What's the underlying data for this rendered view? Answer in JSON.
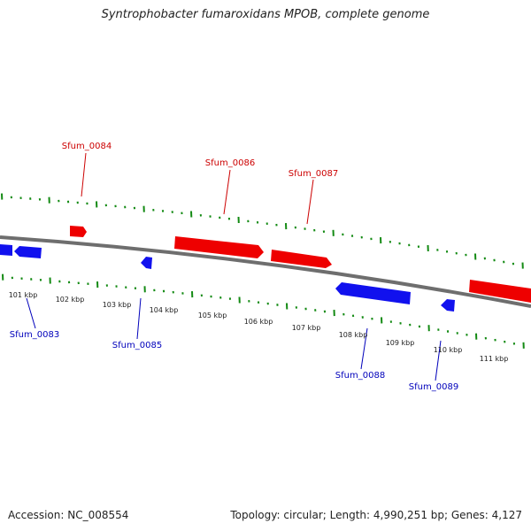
{
  "title": "Syntrophobacter fumaroxidans MPOB, complete genome",
  "accession": "Accession: NC_008554",
  "summary": "Topology: circular; Length: 4,990,251 bp; Genes: 4,127",
  "colors": {
    "forward": "#ee0000",
    "reverse": "#1111ee",
    "backbone": "#888888",
    "ticks": "#138a13",
    "labels_fwd": "#cc0000",
    "labels_rev": "#0000bb"
  },
  "scale_labels": [
    "101 kbp",
    "102 kbp",
    "103 kbp",
    "104 kbp",
    "105 kbp",
    "106 kbp",
    "107 kbp",
    "108 kbp",
    "109 kbp",
    "110 kbp",
    "111 kbp"
  ],
  "genes_forward": [
    {
      "name": "Sfum_0084"
    },
    {
      "name": "Sfum_0086"
    },
    {
      "name": "Sfum_0087"
    }
  ],
  "genes_reverse": [
    {
      "name": "Sfum_0083"
    },
    {
      "name": "Sfum_0085"
    },
    {
      "name": "Sfum_0088"
    },
    {
      "name": "Sfum_0089"
    }
  ]
}
